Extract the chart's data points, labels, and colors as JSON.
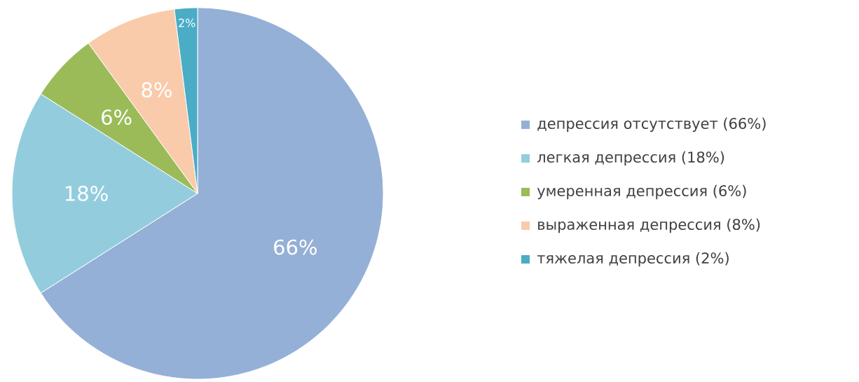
{
  "chart_data": {
    "type": "pie",
    "categories": [
      "депрессия отсутствует (66%)",
      "легкая депрессия (18%)",
      "умеренная депрессия (6%)",
      "выраженная депрессия (8%)",
      "тяжелая депрессия (2%)"
    ],
    "values": [
      66,
      18,
      6,
      8,
      2
    ],
    "value_labels": [
      "66%",
      "18%",
      "6%",
      "8%",
      "2%"
    ],
    "colors": [
      "#95b0d6",
      "#93cddd",
      "#9bbb59",
      "#f9cbaa",
      "#4bacc6"
    ],
    "legend": "right"
  }
}
